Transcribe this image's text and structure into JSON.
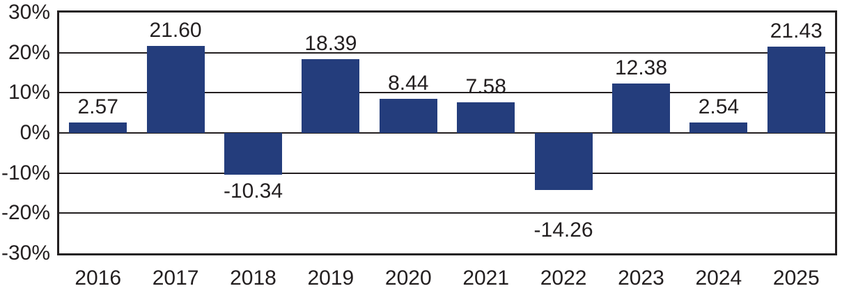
{
  "chart_data": {
    "type": "bar",
    "title": "",
    "xlabel": "",
    "ylabel": "",
    "categories": [
      "2016",
      "2017",
      "2018",
      "2019",
      "2020",
      "2021",
      "2022",
      "2023",
      "2024",
      "2025"
    ],
    "values": [
      2.57,
      21.6,
      -10.34,
      18.39,
      8.44,
      7.58,
      -14.26,
      12.38,
      2.54,
      21.43
    ],
    "value_labels": [
      "2.57",
      "21.60",
      "-10.34",
      "18.39",
      "8.44",
      "7.58",
      "-14.26",
      "12.38",
      "2.54",
      "21.43"
    ],
    "y_tick_values": [
      30,
      20,
      10,
      0,
      -10,
      -20,
      -30
    ],
    "y_tick_labels": [
      "30%",
      "20%",
      "10%",
      "0%",
      "-10%",
      "-20%",
      "-30%"
    ],
    "ylim": [
      -30,
      30
    ],
    "grid": true,
    "legend_position": "none",
    "bar_color": "#243d7c",
    "axis_color": "#231f20",
    "text_color": "#231f20",
    "background_color": "#ffffff"
  }
}
